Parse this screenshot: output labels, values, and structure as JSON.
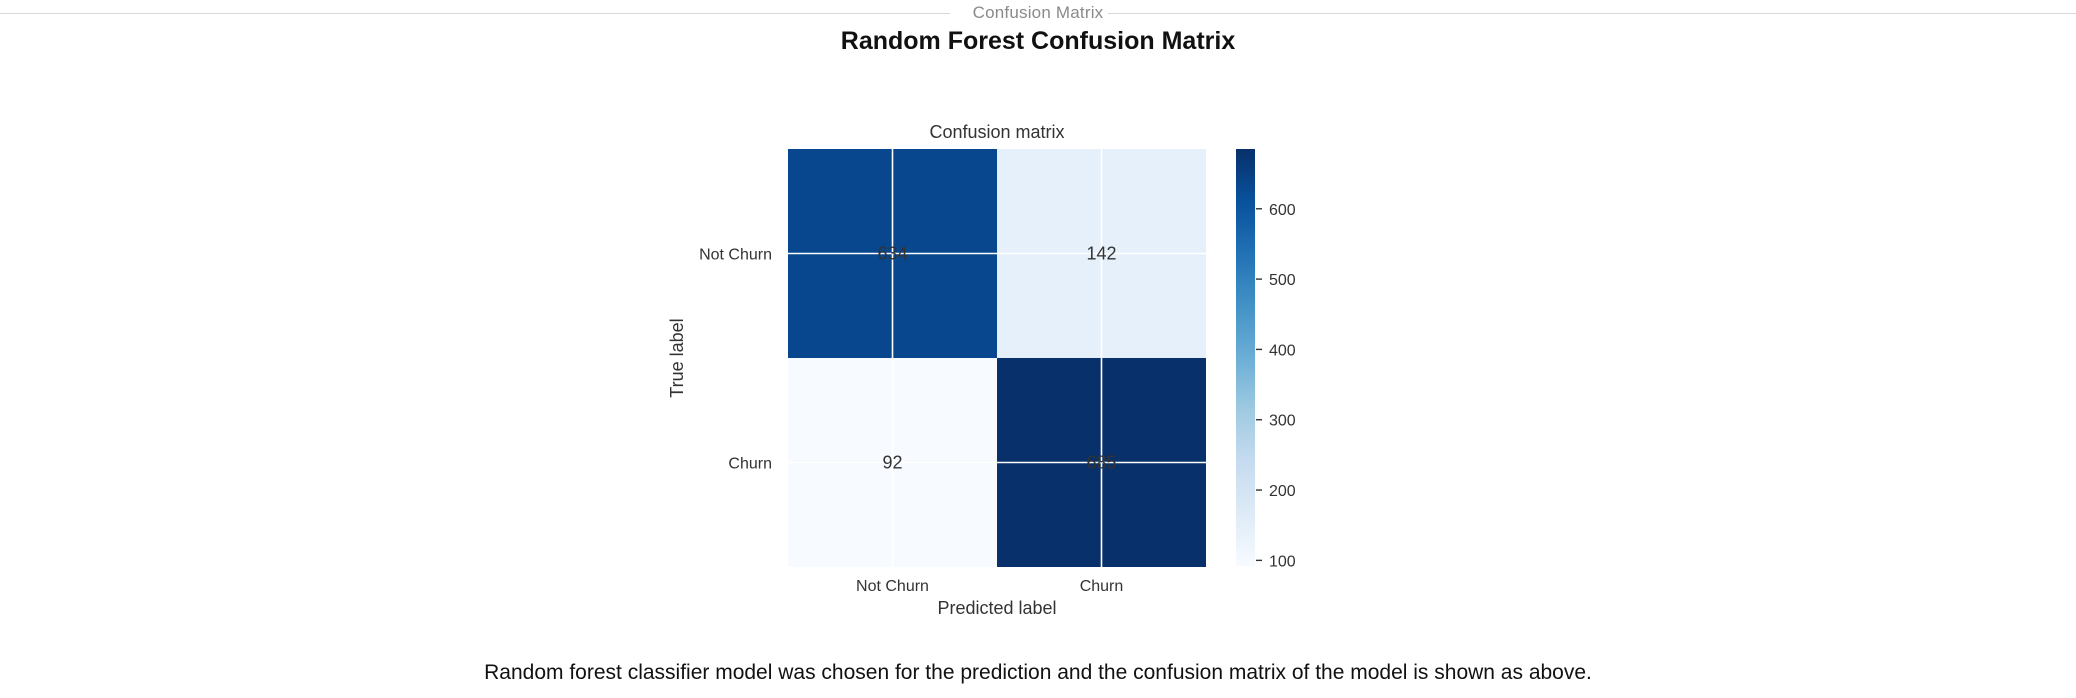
{
  "section": {
    "label": "Confusion Matrix"
  },
  "page": {
    "title": "Random Forest Confusion Matrix"
  },
  "caption": "Random forest classifier model was chosen for the prediction and the confusion matrix of the model is shown as above.",
  "chart_data": {
    "type": "heatmap",
    "title": "Confusion matrix",
    "xlabel": "Predicted label",
    "ylabel": "True label",
    "row_labels": [
      "Not Churn",
      "Churn"
    ],
    "col_labels": [
      "Not Churn",
      "Churn"
    ],
    "matrix": [
      [
        634,
        142
      ],
      [
        92,
        685
      ]
    ],
    "colormap": "Blues",
    "colorbar": {
      "min": 92,
      "max": 685,
      "ticks": [
        100,
        200,
        300,
        400,
        500,
        600
      ]
    },
    "grid": true
  }
}
